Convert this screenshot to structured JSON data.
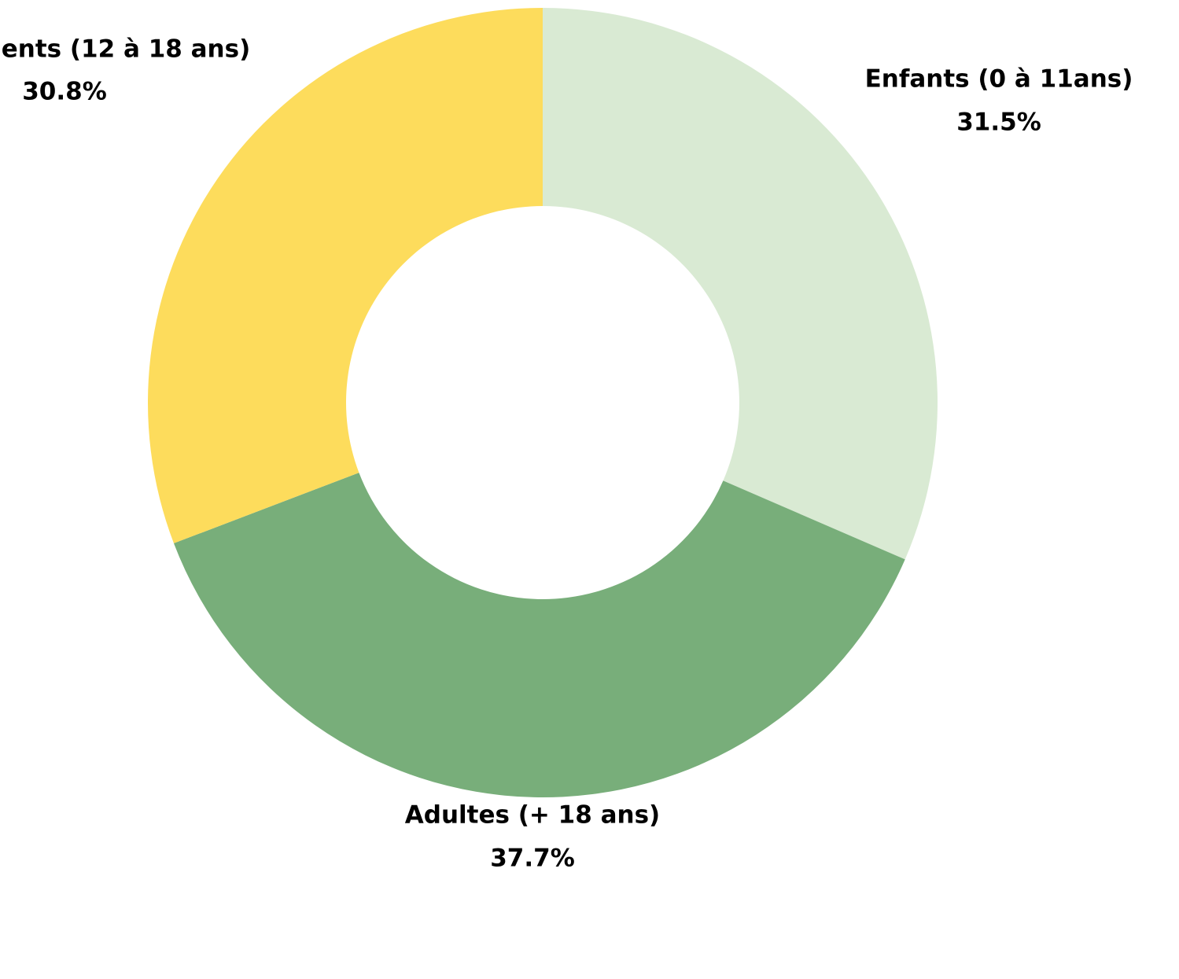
{
  "chart_data": {
    "type": "donut",
    "categories": [
      "Enfants (0 à 11ans)",
      "Adultes (+ 18 ans)",
      "ents (12 à 18 ans)"
    ],
    "values": [
      31.5,
      37.7,
      30.8
    ],
    "value_labels": [
      "31.5%",
      "37.7%",
      "30.8%"
    ],
    "colors": [
      "#d9ead3",
      "#78ae7a",
      "#fddc5c"
    ]
  }
}
